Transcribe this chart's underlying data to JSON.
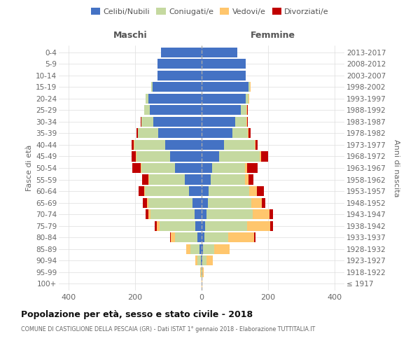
{
  "age_groups": [
    "100+",
    "95-99",
    "90-94",
    "85-89",
    "80-84",
    "75-79",
    "70-74",
    "65-69",
    "60-64",
    "55-59",
    "50-54",
    "45-49",
    "40-44",
    "35-39",
    "30-34",
    "25-29",
    "20-24",
    "15-19",
    "10-14",
    "5-9",
    "0-4"
  ],
  "birth_years": [
    "≤ 1917",
    "1918-1922",
    "1923-1927",
    "1928-1932",
    "1933-1937",
    "1938-1942",
    "1943-1947",
    "1948-1952",
    "1953-1957",
    "1958-1962",
    "1963-1967",
    "1968-1972",
    "1973-1977",
    "1978-1982",
    "1983-1987",
    "1988-1992",
    "1993-1997",
    "1998-2002",
    "2003-2007",
    "2008-2012",
    "2013-2017"
  ],
  "maschi": {
    "celibi": [
      1,
      1,
      3,
      6,
      12,
      18,
      22,
      28,
      38,
      50,
      80,
      95,
      110,
      130,
      145,
      155,
      160,
      148,
      132,
      132,
      122
    ],
    "coniugati": [
      0,
      2,
      10,
      28,
      68,
      108,
      132,
      132,
      132,
      108,
      102,
      102,
      92,
      62,
      37,
      17,
      9,
      3,
      0,
      0,
      0
    ],
    "vedovi": [
      0,
      2,
      6,
      12,
      12,
      9,
      6,
      4,
      3,
      2,
      2,
      2,
      2,
      0,
      0,
      0,
      0,
      0,
      0,
      0,
      0
    ],
    "divorziati": [
      0,
      0,
      0,
      0,
      3,
      6,
      9,
      13,
      16,
      20,
      25,
      12,
      6,
      5,
      2,
      0,
      0,
      0,
      0,
      0,
      0
    ]
  },
  "femmine": {
    "nubili": [
      0,
      0,
      2,
      5,
      8,
      10,
      15,
      18,
      22,
      28,
      32,
      52,
      68,
      92,
      102,
      118,
      132,
      142,
      132,
      132,
      108
    ],
    "coniugate": [
      0,
      2,
      12,
      32,
      72,
      128,
      138,
      132,
      122,
      102,
      98,
      122,
      92,
      48,
      32,
      17,
      9,
      3,
      0,
      0,
      0
    ],
    "vedove": [
      2,
      5,
      20,
      48,
      78,
      68,
      52,
      32,
      22,
      12,
      6,
      5,
      3,
      2,
      2,
      2,
      2,
      2,
      0,
      0,
      0
    ],
    "divorziate": [
      0,
      0,
      0,
      0,
      5,
      8,
      10,
      10,
      22,
      14,
      32,
      22,
      6,
      5,
      3,
      2,
      0,
      0,
      0,
      0,
      0
    ]
  },
  "color_celibi": "#4472c4",
  "color_coniugati": "#c5d9a0",
  "color_vedovi": "#ffc66d",
  "color_divorziati": "#c00000",
  "xlim": 430,
  "title": "Popolazione per età, sesso e stato civile - 2018",
  "subtitle": "COMUNE DI CASTIGLIONE DELLA PESCAIA (GR) - Dati ISTAT 1° gennaio 2018 - Elaborazione TUTTITALIA.IT",
  "ylabel": "Fasce di età",
  "ylabel_right": "Anni di nascita",
  "xlabel_maschi": "Maschi",
  "xlabel_femmine": "Femmine",
  "bg_color": "#ffffff",
  "grid_color": "#dddddd"
}
